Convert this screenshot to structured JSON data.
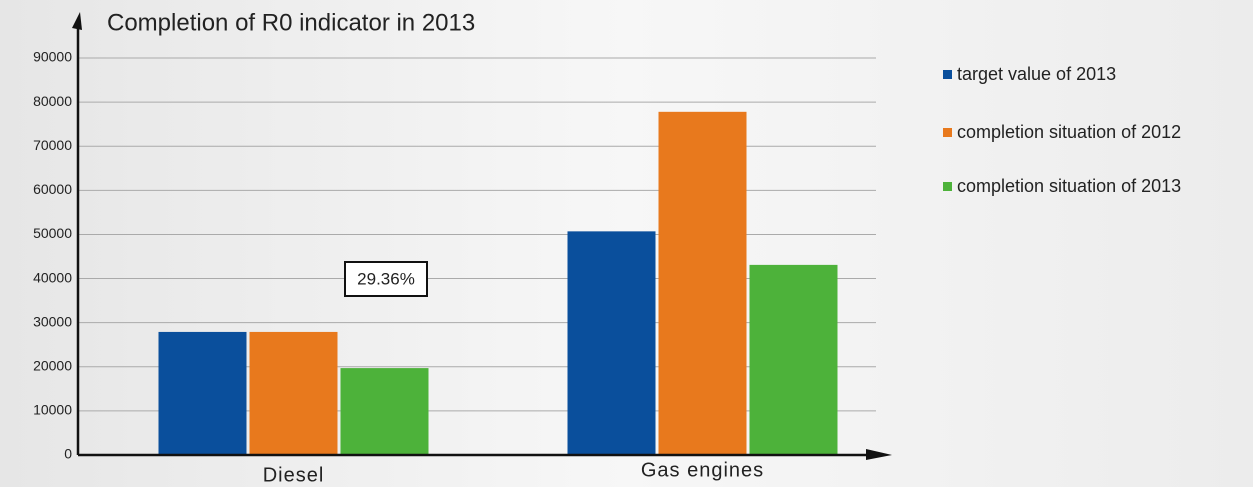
{
  "chart_data": {
    "type": "bar",
    "title": "Completion of R0 indicator in 2013",
    "categories": [
      "Diesel",
      "Gas engines"
    ],
    "series": [
      {
        "name": "target value of 2013",
        "color": "#0a4f9c",
        "values": [
          27900,
          50700
        ]
      },
      {
        "name": "completion situation of 2012",
        "color": "#e8791d",
        "values": [
          27900,
          77800
        ]
      },
      {
        "name": "completion situation of 2013",
        "color": "#4db23a",
        "values": [
          19700,
          43100
        ]
      }
    ],
    "annotations": [
      "29.36%"
    ],
    "ylim": [
      0,
      90000
    ],
    "yticks": [
      0,
      10000,
      20000,
      30000,
      40000,
      50000,
      60000,
      70000,
      80000,
      90000
    ],
    "grid": true,
    "legend": "right"
  }
}
